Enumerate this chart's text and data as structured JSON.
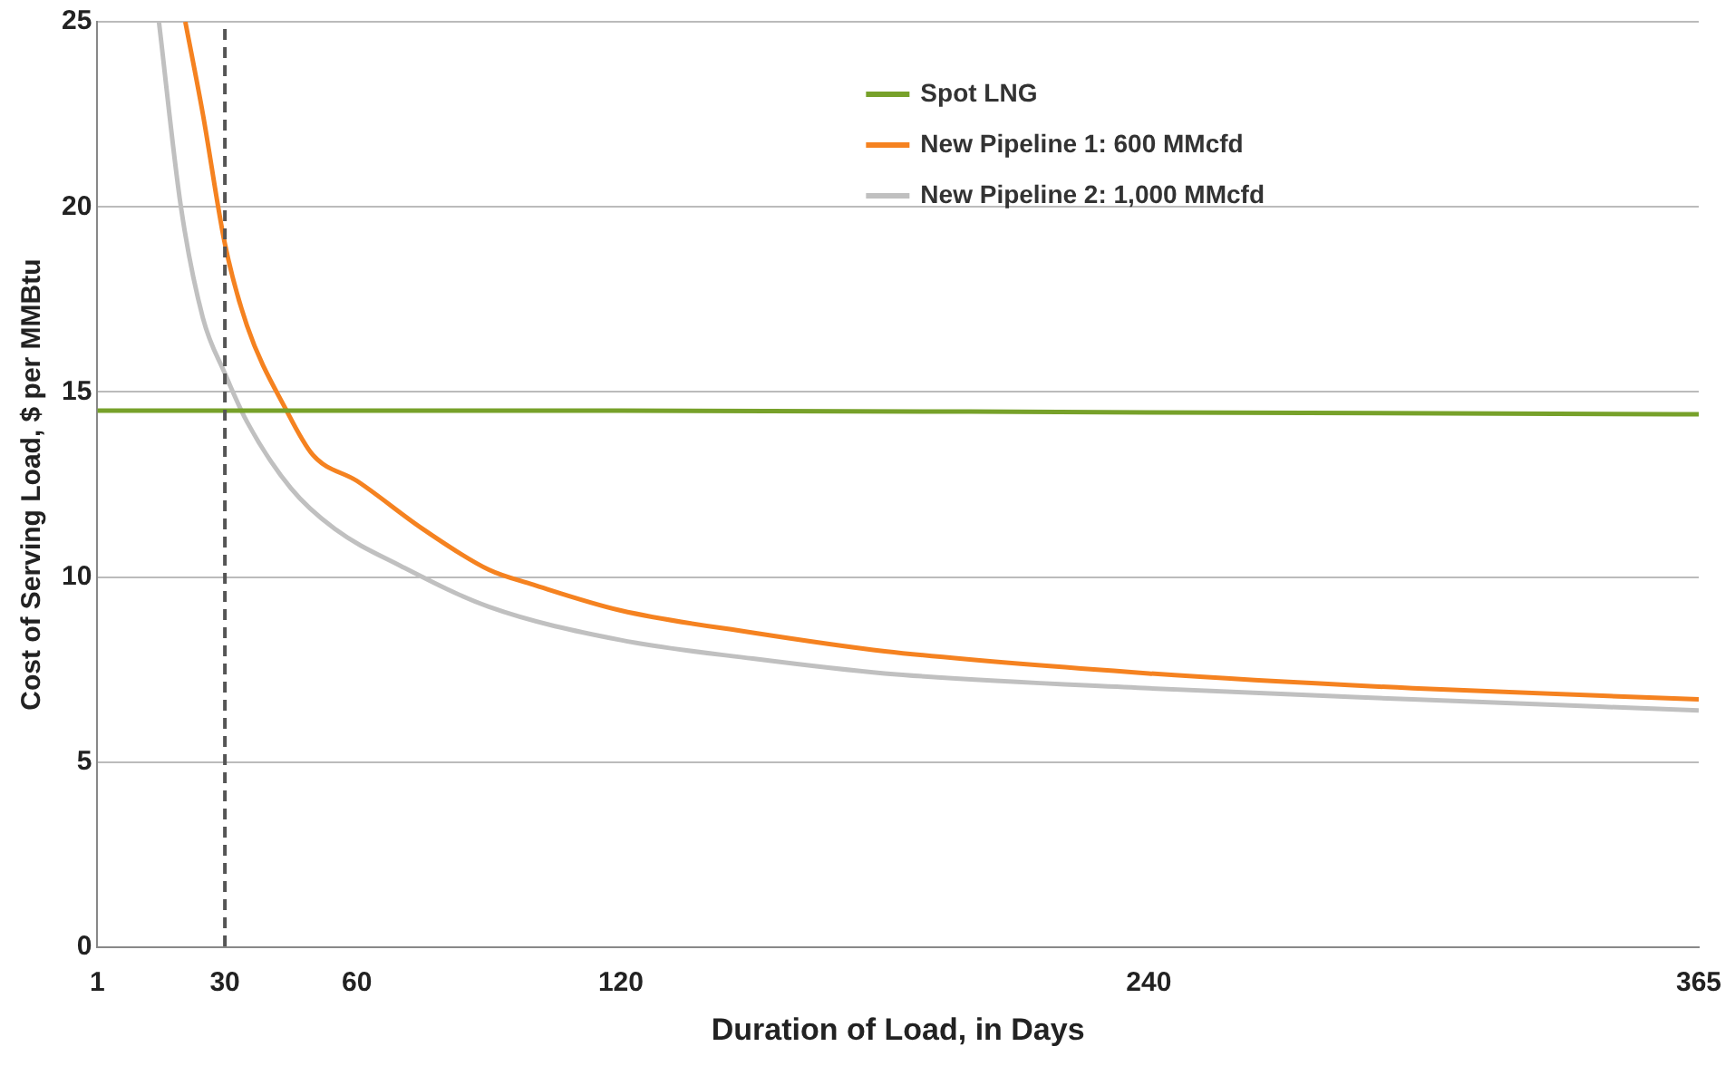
{
  "chart_data": {
    "type": "line",
    "xlabel": "Duration of Load, in Days",
    "ylabel": "Cost of Serving Load, $ per MMBtu",
    "xlim": [
      1,
      365
    ],
    "xticks": [
      1,
      30,
      60,
      120,
      240,
      365
    ],
    "ylim": [
      0,
      25
    ],
    "yticks": [
      0,
      5,
      10,
      15,
      20,
      25
    ],
    "grid": "y",
    "legend": "top right",
    "marker": "none",
    "series": [
      {
        "name": "Spot LNG",
        "color": "#77a12a",
        "x": [
          1,
          60,
          120,
          240,
          365
        ],
        "values": [
          14.5,
          14.5,
          14.5,
          14.45,
          14.4
        ]
      },
      {
        "name": "New Pipeline 1: 600 MMcfd",
        "color": "#f58220",
        "x": [
          21,
          25,
          30,
          35,
          44,
          50,
          60,
          75,
          90,
          100,
          120,
          150,
          180,
          240,
          300,
          365
        ],
        "values": [
          25,
          22.5,
          19,
          16.8,
          14.5,
          13.3,
          12.6,
          11.3,
          10.2,
          9.8,
          9.1,
          8.5,
          8.0,
          7.4,
          7.0,
          6.7
        ]
      },
      {
        "name": "New Pipeline 2: 1,000 MMcfd",
        "color": "#c0c0c0",
        "x": [
          15,
          20,
          25,
          30,
          35,
          45,
          55,
          70,
          90,
          120,
          150,
          180,
          240,
          300,
          365
        ],
        "values": [
          25,
          20,
          17,
          15.5,
          14.2,
          12.4,
          11.3,
          10.3,
          9.2,
          8.3,
          7.8,
          7.4,
          7.0,
          6.7,
          6.4
        ]
      }
    ],
    "ref_lines": [
      {
        "axis": "x",
        "value": 30,
        "color": "#555555",
        "line_style": "dashed"
      }
    ]
  }
}
